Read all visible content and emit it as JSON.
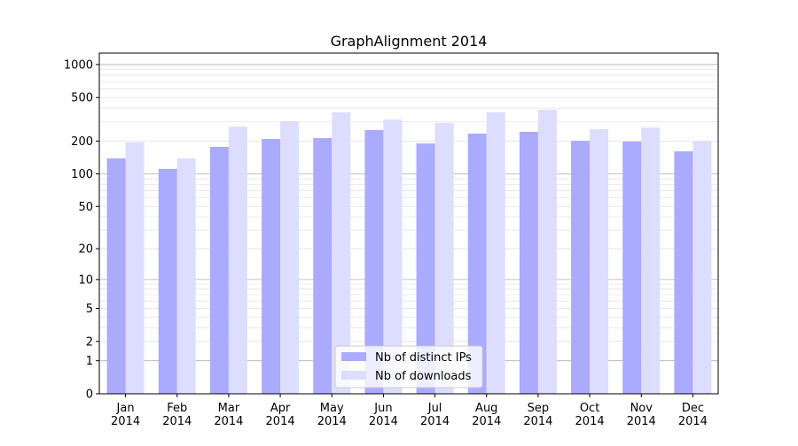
{
  "chart_data": {
    "type": "bar",
    "title": "GraphAlignment 2014",
    "xlabel": "",
    "ylabel": "",
    "yscale": "log(1+y)",
    "ylim": [
      0,
      1300
    ],
    "yticks": [
      0,
      1,
      2,
      5,
      10,
      20,
      50,
      100,
      200,
      500,
      1000
    ],
    "grid": true,
    "legend_position": "bottom-center",
    "categories": [
      "Jan\n2014",
      "Feb\n2014",
      "Mar\n2014",
      "Apr\n2014",
      "May\n2014",
      "Jun\n2014",
      "Jul\n2014",
      "Aug\n2014",
      "Sep\n2014",
      "Oct\n2014",
      "Nov\n2014",
      "Dec\n2014"
    ],
    "series": [
      {
        "name": "Nb of distinct IPs",
        "color": "#aaaaff",
        "values": [
          139,
          111,
          177,
          209,
          213,
          252,
          190,
          234,
          243,
          201,
          198,
          161
        ]
      },
      {
        "name": "Nb of downloads",
        "color": "#ddddff",
        "values": [
          195,
          139,
          271,
          304,
          366,
          315,
          293,
          366,
          387,
          257,
          266,
          198
        ]
      }
    ]
  }
}
